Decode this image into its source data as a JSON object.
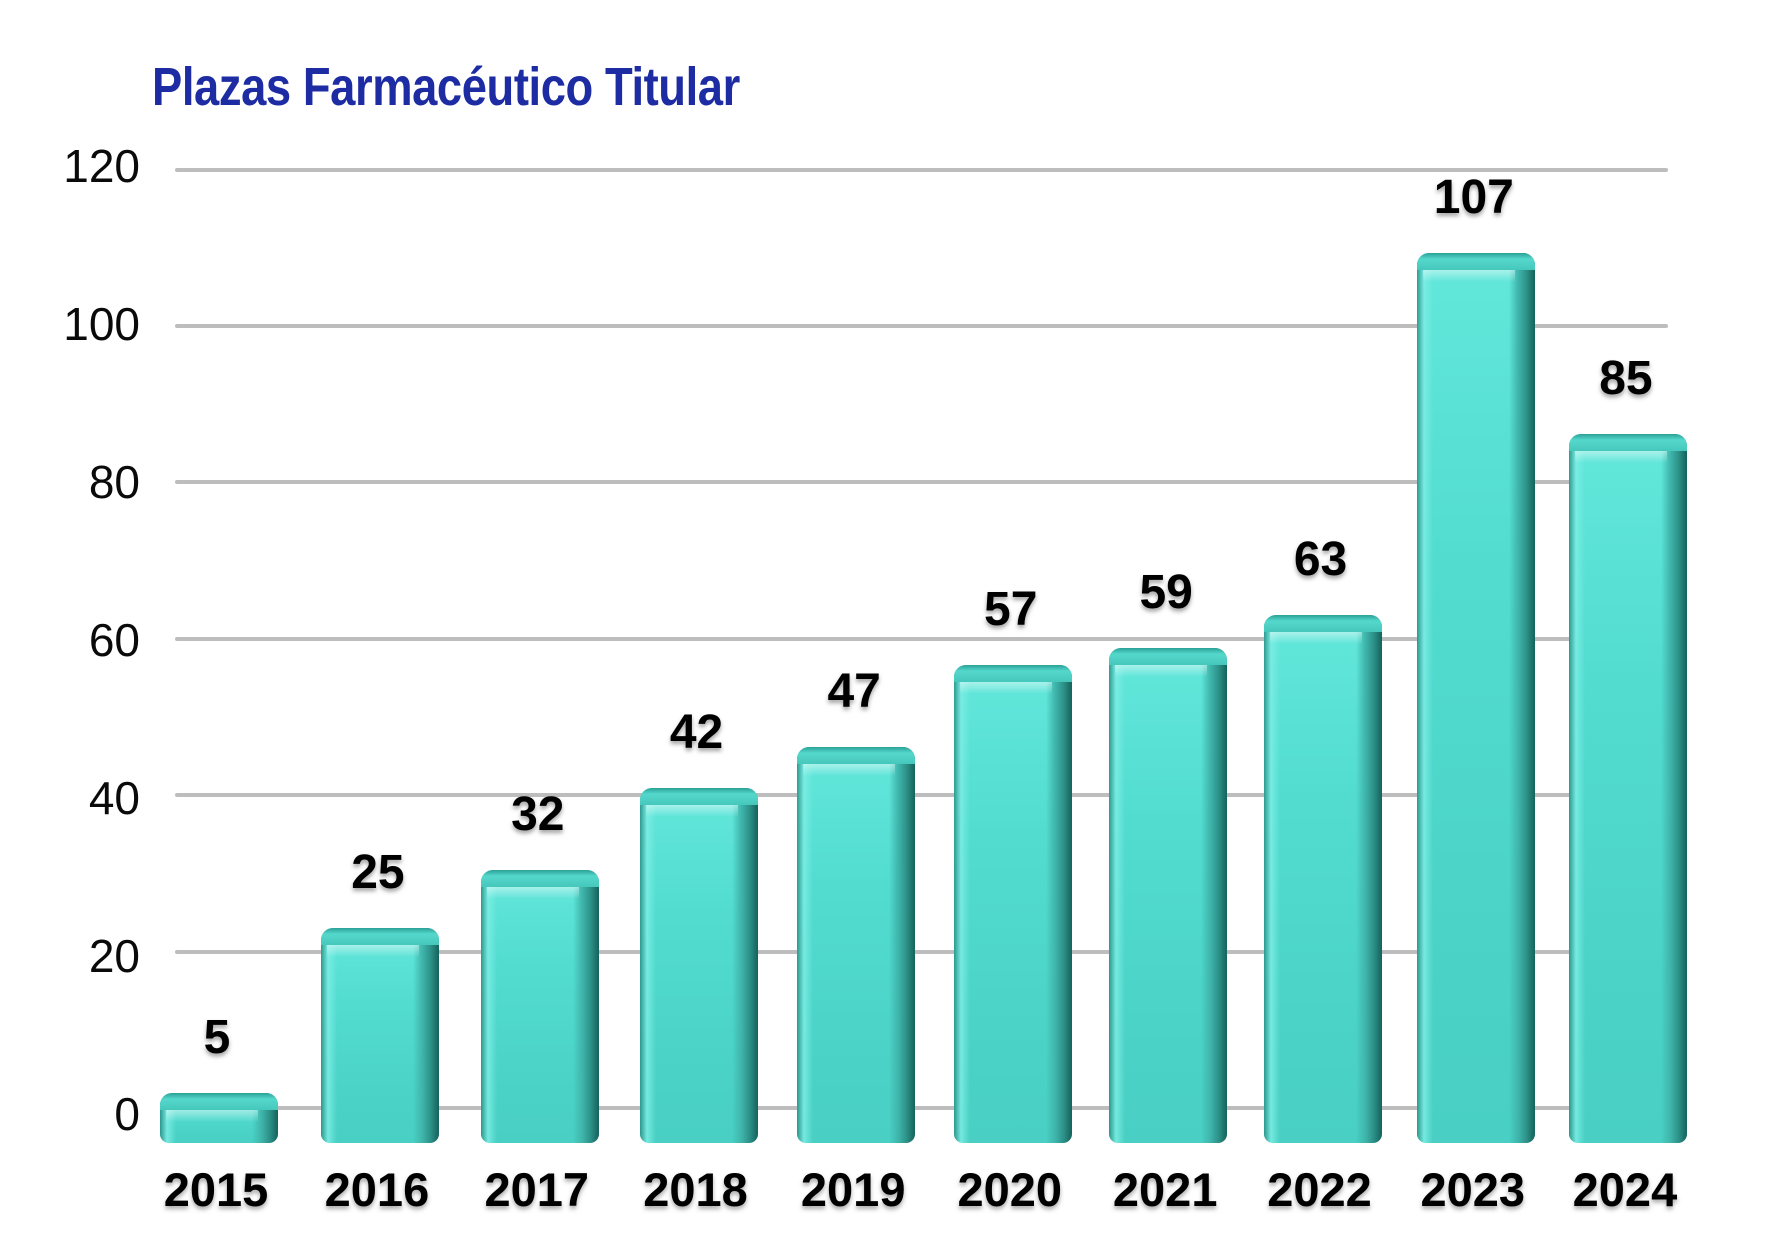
{
  "chart_data": {
    "type": "bar",
    "title": "Plazas Farmacéutico Titular",
    "categories": [
      "2015",
      "2016",
      "2017",
      "2018",
      "2019",
      "2020",
      "2021",
      "2022",
      "2023",
      "2024"
    ],
    "values": [
      5,
      25,
      32,
      42,
      47,
      57,
      59,
      63,
      107,
      85
    ],
    "xlabel": "",
    "ylabel": "",
    "y_ticks": [
      0,
      20,
      40,
      60,
      80,
      100,
      120
    ],
    "ylim": [
      0,
      120
    ],
    "grid": "horizontal",
    "legend_position": "none",
    "colors": {
      "bar_face": "#4fd8cc",
      "bar_face_light": "#63e7db",
      "bar_side_dark": "#14625b",
      "bar_cap": "#46c7bc",
      "gridline": "#bdbdbd",
      "title": "#1e2ca3",
      "label": "#000000"
    }
  }
}
